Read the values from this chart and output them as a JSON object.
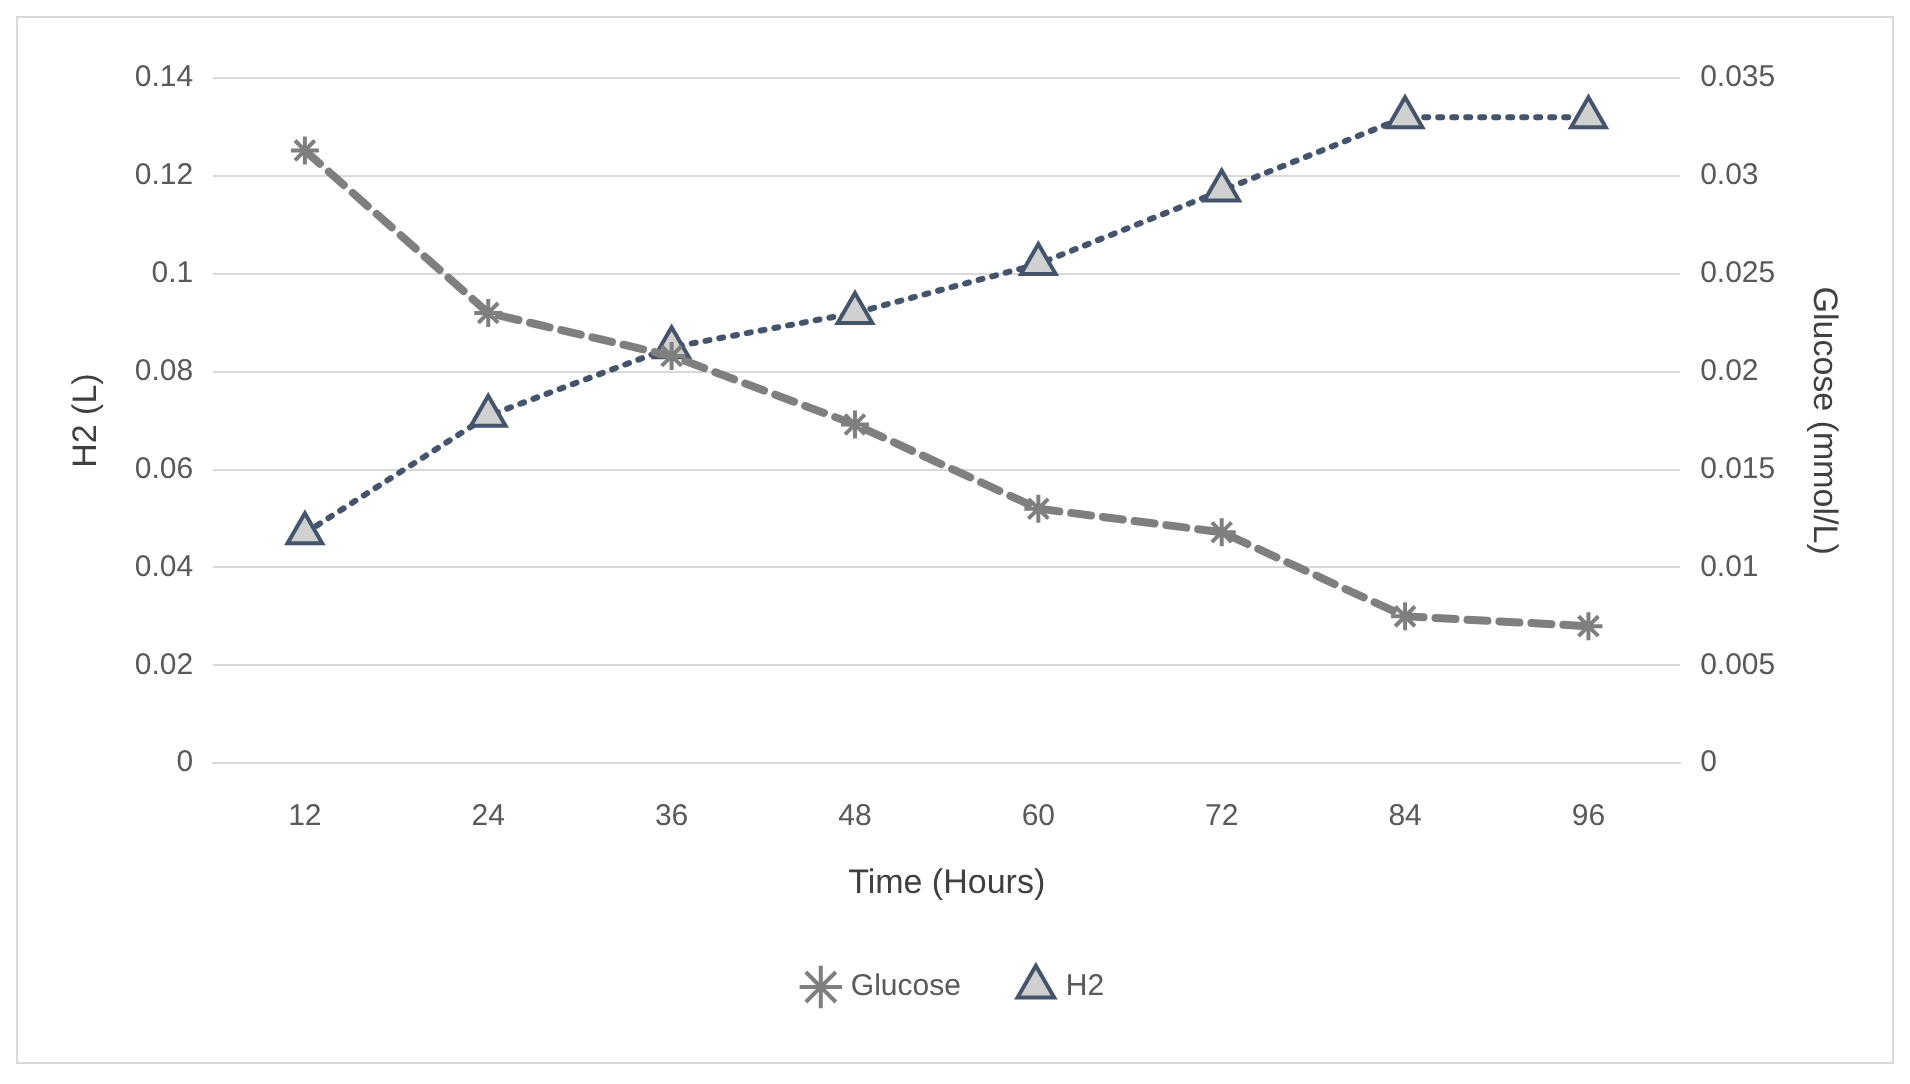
{
  "chart_data": {
    "type": "line",
    "xlabel": "Time (Hours)",
    "ylabel": "H2 (L)",
    "y2label": "Glucose (mmol/L)",
    "categories": [
      "12",
      "24",
      "36",
      "48",
      "60",
      "72",
      "84",
      "96"
    ],
    "series": [
      {
        "name": "Glucose",
        "axis": "y2",
        "color": "#7f7f7f",
        "marker": "cross",
        "line_style": "dashed",
        "values": [
          0.0313,
          0.023,
          0.0208,
          0.0173,
          0.013,
          0.0118,
          0.0075,
          0.007
        ]
      },
      {
        "name": "H2",
        "color": "#44546a",
        "marker": "triangle",
        "line_style": "dotted",
        "values": [
          0.047,
          0.071,
          0.085,
          0.092,
          0.102,
          0.117,
          0.132,
          0.132
        ]
      }
    ],
    "ylim": [
      0,
      0.14
    ],
    "yticks": [
      0,
      0.02,
      0.04,
      0.06,
      0.08,
      0.1,
      0.12,
      0.14
    ],
    "y2lim": [
      0,
      0.035
    ],
    "y2ticks": [
      0,
      0.005,
      0.01,
      0.015,
      0.02,
      0.025,
      0.03,
      0.035
    ],
    "grid": "y",
    "legend": "bottom"
  }
}
